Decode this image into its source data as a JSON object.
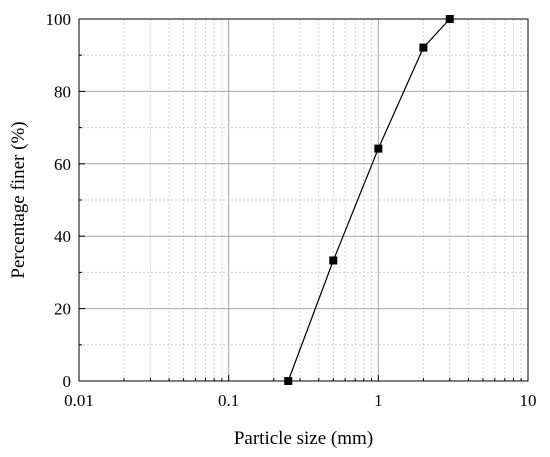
{
  "chart_data": {
    "type": "line",
    "title": "",
    "xlabel": "Particle size (mm)",
    "ylabel": "Percentage finer (%)",
    "x_scale": "log",
    "xlim": [
      0.01,
      10
    ],
    "ylim": [
      0,
      100
    ],
    "x_ticks": [
      "0.01",
      "0.1",
      "1",
      "10"
    ],
    "y_ticks": [
      "0",
      "20",
      "40",
      "60",
      "80",
      "100"
    ],
    "grid": true,
    "legend": "none",
    "series": [
      {
        "x": [
          0.25,
          0.5,
          1,
          2,
          3
        ],
        "y": [
          0,
          33.3,
          64.2,
          92.1,
          100
        ]
      }
    ]
  }
}
